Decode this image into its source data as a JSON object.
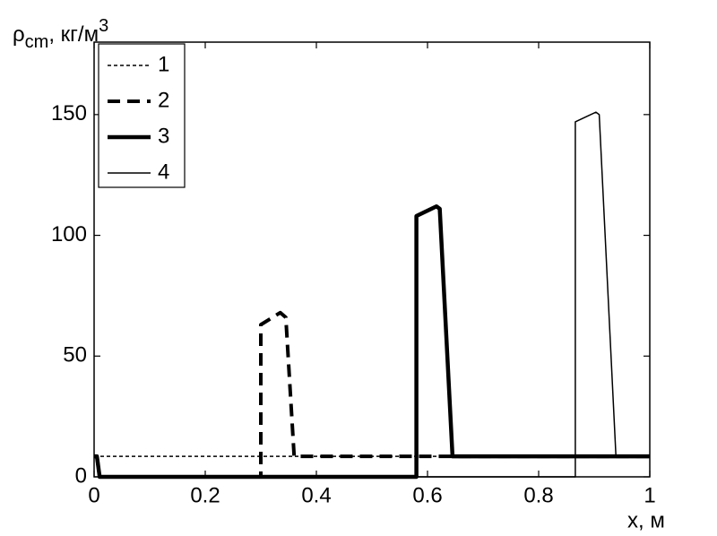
{
  "chart_data": {
    "type": "line",
    "ylabel": {
      "base": "ρ",
      "sub": "cm",
      "rest": ", кг/м",
      "sup": "3"
    },
    "xlabel": "x, м",
    "xlim": [
      0,
      1
    ],
    "xticks": [
      0,
      0.2,
      0.4,
      0.6,
      0.8,
      1
    ],
    "ylim": [
      0,
      180
    ],
    "yticks": [
      0,
      50,
      100,
      150
    ],
    "legend": "top-left",
    "series": [
      {
        "name": "1",
        "color": "#000000",
        "width": 1.5,
        "dash": "4 3",
        "x": [
          0,
          1
        ],
        "values": [
          8.5,
          8.5
        ]
      },
      {
        "name": "2",
        "color": "#000000",
        "width": 4,
        "dash": "14 8",
        "x": [
          0,
          0.005,
          0.01,
          0.3,
          0.3,
          0.335,
          0.345,
          0.36,
          1
        ],
        "values": [
          8.5,
          8.5,
          0,
          0,
          63,
          68,
          66,
          8.5,
          8.5
        ]
      },
      {
        "name": "3",
        "color": "#000000",
        "width": 4.5,
        "dash": "none",
        "x": [
          0,
          0.005,
          0.01,
          0.58,
          0.58,
          0.616,
          0.622,
          0.645,
          1
        ],
        "values": [
          8.5,
          8.5,
          0,
          0,
          108,
          112,
          111,
          8.5,
          8.5
        ]
      },
      {
        "name": "4",
        "color": "#000000",
        "width": 1.5,
        "dash": "none",
        "x": [
          0,
          0.005,
          0.01,
          0.866,
          0.866,
          0.903,
          0.909,
          0.939,
          1
        ],
        "values": [
          8.5,
          8.5,
          0,
          0,
          147,
          151,
          150,
          9,
          8.5
        ]
      }
    ]
  }
}
